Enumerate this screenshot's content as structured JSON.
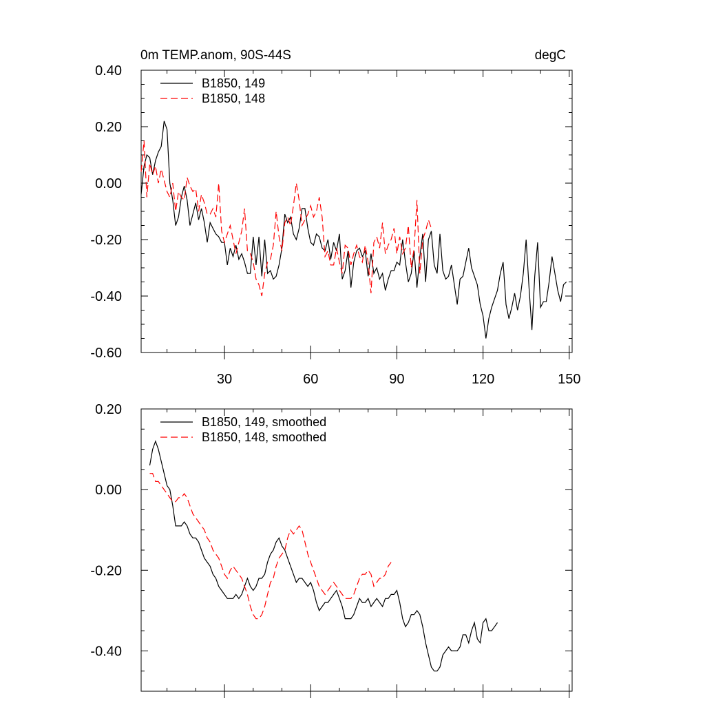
{
  "chart_data": [
    {
      "type": "line",
      "title": "0m TEMP.anom, 90S-44S",
      "units": "degC",
      "xlim": [
        1,
        151
      ],
      "ylim": [
        -0.6,
        0.4
      ],
      "yticks": [
        "0.40",
        "0.20",
        "0.00",
        "-0.20",
        "-0.40",
        "-0.60"
      ],
      "ytick_values": [
        0.4,
        0.2,
        0.0,
        -0.2,
        -0.4,
        -0.6
      ],
      "xticks": [
        "30",
        "60",
        "90",
        "120",
        "150"
      ],
      "xtick_values": [
        30,
        60,
        90,
        120,
        150
      ],
      "legend_position": "top-left",
      "series": [
        {
          "name": "B1850, 149",
          "color": "#000000",
          "dash": "solid",
          "x_start": 1,
          "values": [
            -0.04,
            0.06,
            0.1,
            0.09,
            0.03,
            0.08,
            0.11,
            0.13,
            0.22,
            0.19,
            0.0,
            -0.06,
            -0.15,
            -0.12,
            -0.05,
            -0.01,
            -0.06,
            -0.15,
            -0.11,
            -0.07,
            -0.13,
            -0.09,
            -0.14,
            -0.21,
            -0.14,
            -0.16,
            -0.18,
            -0.19,
            -0.21,
            -0.21,
            -0.29,
            -0.23,
            -0.26,
            -0.22,
            -0.27,
            -0.25,
            -0.28,
            -0.32,
            -0.32,
            -0.19,
            -0.29,
            -0.19,
            -0.33,
            -0.2,
            -0.32,
            -0.31,
            -0.34,
            -0.33,
            -0.29,
            -0.23,
            -0.11,
            -0.14,
            -0.12,
            -0.18,
            -0.2,
            -0.16,
            -0.09,
            -0.09,
            -0.16,
            -0.21,
            -0.22,
            -0.18,
            -0.19,
            -0.23,
            -0.24,
            -0.2,
            -0.27,
            -0.21,
            -0.24,
            -0.18,
            -0.34,
            -0.31,
            -0.24,
            -0.37,
            -0.28,
            -0.24,
            -0.23,
            -0.26,
            -0.24,
            -0.33,
            -0.25,
            -0.32,
            -0.3,
            -0.34,
            -0.32,
            -0.38,
            -0.34,
            -0.31,
            -0.31,
            -0.28,
            -0.29,
            -0.2,
            -0.28,
            -0.35,
            -0.32,
            -0.24,
            -0.37,
            -0.26,
            -0.18,
            -0.35,
            -0.2,
            -0.17,
            -0.29,
            -0.32,
            -0.18,
            -0.31,
            -0.34,
            -0.33,
            -0.29,
            -0.36,
            -0.43,
            -0.34,
            -0.33,
            -0.28,
            -0.23,
            -0.3,
            -0.33,
            -0.36,
            -0.43,
            -0.47,
            -0.55,
            -0.48,
            -0.44,
            -0.41,
            -0.38,
            -0.32,
            -0.28,
            -0.43,
            -0.48,
            -0.44,
            -0.39,
            -0.45,
            -0.4,
            -0.32,
            -0.2,
            -0.37,
            -0.52,
            -0.33,
            -0.21,
            -0.44,
            -0.42,
            -0.42,
            -0.35,
            -0.26,
            -0.32,
            -0.38,
            -0.42,
            -0.36,
            -0.35
          ]
        },
        {
          "name": "B1850, 148",
          "color": "#ff0000",
          "dash": "dashed",
          "x_start": 1,
          "values": [
            0.04,
            0.15,
            -0.05,
            0.07,
            0.03,
            0.06,
            0.0,
            0.05,
            0.01,
            -0.03,
            -0.05,
            0.0,
            -0.1,
            -0.03,
            -0.05,
            -0.06,
            0.02,
            -0.01,
            -0.03,
            -0.02,
            -0.1,
            -0.04,
            -0.07,
            -0.11,
            -0.11,
            -0.09,
            -0.12,
            0.0,
            -0.17,
            -0.21,
            -0.18,
            -0.15,
            -0.2,
            -0.25,
            -0.21,
            -0.17,
            -0.09,
            -0.24,
            -0.25,
            -0.28,
            -0.34,
            -0.36,
            -0.4,
            -0.32,
            -0.28,
            -0.27,
            -0.22,
            -0.1,
            -0.19,
            -0.24,
            -0.14,
            -0.12,
            -0.15,
            -0.08,
            0.0,
            -0.06,
            -0.15,
            -0.13,
            -0.11,
            -0.08,
            -0.12,
            -0.1,
            -0.05,
            -0.12,
            -0.26,
            -0.24,
            -0.29,
            -0.29,
            -0.23,
            -0.28,
            -0.32,
            -0.22,
            -0.23,
            -0.29,
            -0.25,
            -0.22,
            -0.26,
            -0.28,
            -0.22,
            -0.28,
            -0.39,
            -0.21,
            -0.19,
            -0.23,
            -0.14,
            -0.25,
            -0.22,
            -0.2,
            -0.16,
            -0.25,
            -0.19,
            -0.25,
            -0.23,
            -0.15,
            -0.3,
            -0.23,
            -0.06,
            -0.32,
            -0.2,
            -0.17,
            -0.13,
            -0.16
          ]
        }
      ]
    },
    {
      "type": "line",
      "xlim": [
        1,
        151
      ],
      "ylim": [
        -0.5,
        0.2
      ],
      "yticks": [
        "0.20",
        "0.00",
        "-0.20",
        "-0.40"
      ],
      "ytick_values": [
        0.2,
        0.0,
        -0.2,
        -0.4
      ],
      "xtick_values": [
        30,
        60,
        90,
        120,
        150
      ],
      "legend_position": "top-left",
      "series": [
        {
          "name": "B1850, 149, smoothed",
          "color": "#000000",
          "dash": "solid",
          "x_start": 4,
          "values": [
            0.06,
            0.1,
            0.12,
            0.1,
            0.07,
            0.04,
            0.01,
            0.0,
            -0.04,
            -0.09,
            -0.09,
            -0.09,
            -0.08,
            -0.09,
            -0.11,
            -0.12,
            -0.12,
            -0.13,
            -0.15,
            -0.17,
            -0.18,
            -0.19,
            -0.21,
            -0.22,
            -0.24,
            -0.25,
            -0.26,
            -0.27,
            -0.27,
            -0.27,
            -0.26,
            -0.27,
            -0.26,
            -0.24,
            -0.22,
            -0.24,
            -0.25,
            -0.24,
            -0.22,
            -0.22,
            -0.21,
            -0.18,
            -0.16,
            -0.15,
            -0.13,
            -0.12,
            -0.14,
            -0.15,
            -0.17,
            -0.19,
            -0.21,
            -0.23,
            -0.22,
            -0.22,
            -0.23,
            -0.24,
            -0.23,
            -0.25,
            -0.28,
            -0.3,
            -0.29,
            -0.28,
            -0.28,
            -0.27,
            -0.26,
            -0.25,
            -0.27,
            -0.29,
            -0.32,
            -0.32,
            -0.32,
            -0.31,
            -0.29,
            -0.27,
            -0.28,
            -0.28,
            -0.27,
            -0.29,
            -0.28,
            -0.27,
            -0.28,
            -0.29,
            -0.27,
            -0.27,
            -0.26,
            -0.26,
            -0.25,
            -0.28,
            -0.32,
            -0.34,
            -0.33,
            -0.31,
            -0.31,
            -0.3,
            -0.31,
            -0.34,
            -0.38,
            -0.41,
            -0.44,
            -0.45,
            -0.45,
            -0.44,
            -0.41,
            -0.4,
            -0.39,
            -0.4,
            -0.4,
            -0.4,
            -0.39,
            -0.36,
            -0.36,
            -0.38,
            -0.35,
            -0.33,
            -0.37,
            -0.38,
            -0.33,
            -0.32,
            -0.35,
            -0.35,
            -0.34,
            -0.33
          ]
        },
        {
          "name": "B1850, 148, smoothed",
          "color": "#ff0000",
          "dash": "dashed",
          "x_start": 4,
          "values": [
            0.04,
            0.04,
            0.02,
            0.02,
            0.01,
            0.0,
            -0.01,
            -0.02,
            -0.03,
            -0.03,
            -0.02,
            -0.02,
            -0.01,
            -0.02,
            -0.04,
            -0.06,
            -0.07,
            -0.08,
            -0.09,
            -0.1,
            -0.12,
            -0.13,
            -0.15,
            -0.16,
            -0.17,
            -0.19,
            -0.21,
            -0.22,
            -0.2,
            -0.19,
            -0.2,
            -0.21,
            -0.22,
            -0.24,
            -0.26,
            -0.29,
            -0.31,
            -0.32,
            -0.32,
            -0.31,
            -0.29,
            -0.26,
            -0.23,
            -0.22,
            -0.19,
            -0.17,
            -0.16,
            -0.15,
            -0.12,
            -0.1,
            -0.11,
            -0.1,
            -0.09,
            -0.1,
            -0.13,
            -0.16,
            -0.18,
            -0.2,
            -0.22,
            -0.24,
            -0.25,
            -0.26,
            -0.25,
            -0.24,
            -0.23,
            -0.24,
            -0.25,
            -0.26,
            -0.27,
            -0.27,
            -0.27,
            -0.26,
            -0.24,
            -0.22,
            -0.21,
            -0.21,
            -0.2,
            -0.21,
            -0.24,
            -0.23,
            -0.22,
            -0.22,
            -0.21,
            -0.19,
            -0.18
          ]
        }
      ]
    }
  ]
}
